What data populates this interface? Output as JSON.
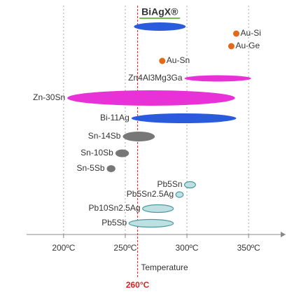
{
  "chart_data": {
    "type": "range",
    "x_label": "Temperature",
    "xlim": [
      170,
      380
    ],
    "xticks": [
      {
        "value": 200,
        "label": "200ºC"
      },
      {
        "value": 250,
        "label": "250ºC"
      },
      {
        "value": 300,
        "label": "300ºC"
      },
      {
        "value": 350,
        "label": "350ºC"
      }
    ],
    "grid": true,
    "reference": {
      "value": 260,
      "label": "260°C",
      "color": "#e02020"
    },
    "alloys": [
      {
        "name": "BiAgX®",
        "range": [
          257,
          299
        ],
        "color": "#2a5bdc"
      },
      {
        "name": "Au-Si",
        "value": 340,
        "color": "#e06a1a"
      },
      {
        "name": "Au-Ge",
        "value": 336,
        "color": "#e06a1a"
      },
      {
        "name": "Au-Sn",
        "value": 280,
        "color": "#e06a1a"
      },
      {
        "name": "Zn4Al3Mg3Ga",
        "range": [
          298,
          352
        ],
        "color": "#e832d8"
      },
      {
        "name": "Zn-30Sn",
        "range": [
          203,
          339
        ],
        "color": "#e832d8"
      },
      {
        "name": "Bi-11Ag",
        "range": [
          255,
          340
        ],
        "color": "#2a5bdc"
      },
      {
        "name": "Sn-14Sb",
        "range": [
          248,
          274
        ],
        "color": "#777777"
      },
      {
        "name": "Sn-10Sb",
        "range": [
          242,
          253
        ],
        "color": "#777777"
      },
      {
        "name": "Sn-5Sb",
        "range": [
          235,
          242
        ],
        "color": "#777777"
      },
      {
        "name": "Pb5Sn",
        "range": [
          298,
          307
        ],
        "color": "#bfe0e3"
      },
      {
        "name": "Pb5Sn2.5Ag",
        "range": [
          291,
          297
        ],
        "color": "#bfe0e3"
      },
      {
        "name": "Pb10Sn2.5Ag",
        "range": [
          264,
          289
        ],
        "color": "#bfe0e3"
      },
      {
        "name": "Pb5Sb",
        "range": [
          253,
          289
        ],
        "color": "#bfe0e3"
      }
    ]
  }
}
